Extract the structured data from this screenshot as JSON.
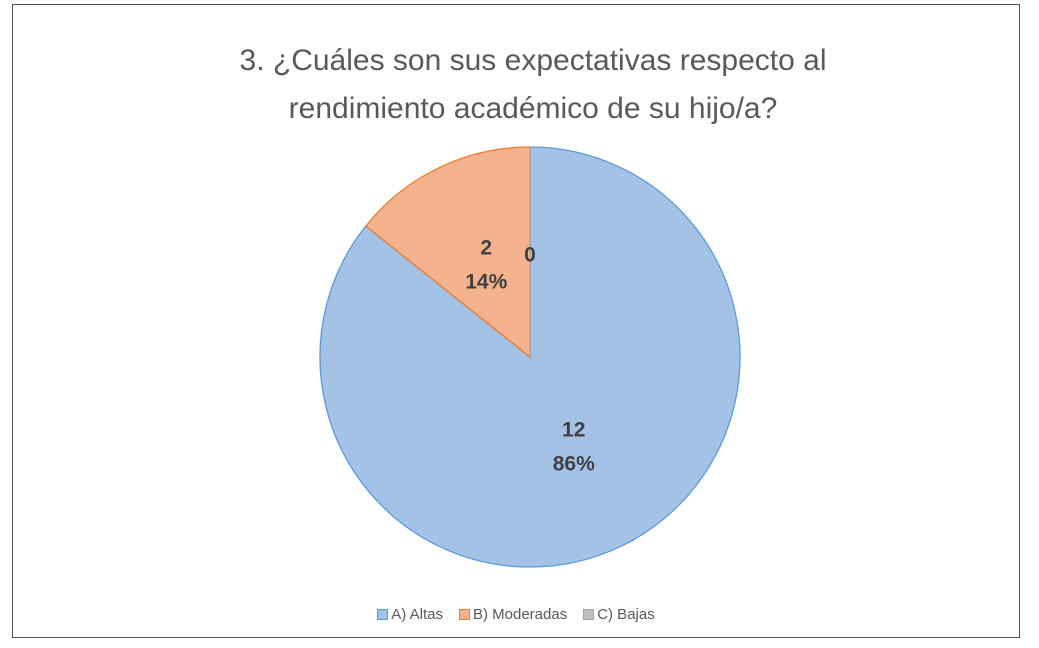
{
  "chart_data": {
    "type": "pie",
    "title": "3. ¿Cuáles son sus expectativas respecto al rendimiento académico de su hijo/a?",
    "categories": [
      "A) Altas",
      "B) Moderadas",
      "C) Bajas"
    ],
    "values": [
      12,
      2,
      0
    ],
    "percent_labels": [
      "86%",
      "14%",
      null
    ],
    "colors": [
      "#a4c2e6",
      "#f4b38e",
      "#bfbfbf"
    ],
    "edge_colors": [
      "#5b9bd5",
      "#ed7d31",
      "#a5a5a5"
    ],
    "legend": "bottom"
  }
}
